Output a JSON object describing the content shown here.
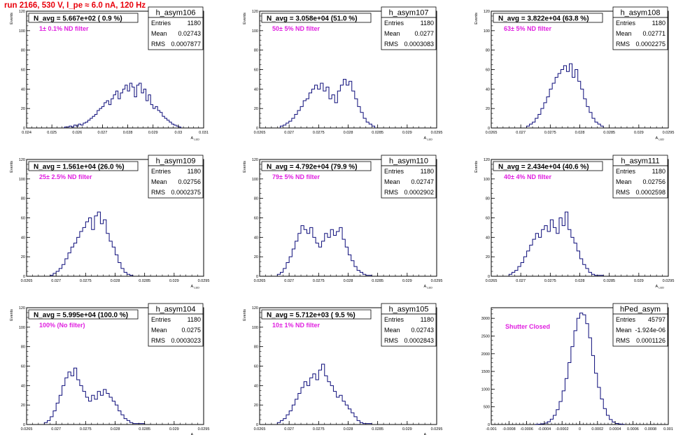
{
  "title": "run 2166,   530 V, I_pe ≈ 6.0 nA, 120 Hz",
  "colors": {
    "histogram": "#0c0c7a",
    "title": "#e8000b",
    "annotation": "#e020e0"
  },
  "chart_data": [
    {
      "type": "bar",
      "name": "h_asym106",
      "ylabel": "Events",
      "xlabel": "A_LED",
      "label": "N_avg = 5.667e+02 ( 0.9 %)",
      "note": "1± 0.1% ND filter",
      "stats": {
        "entries": "1180",
        "mean": "0.02743",
        "rms": "0.0007877"
      },
      "xlim": [
        0.024,
        0.031
      ],
      "ylim": [
        0,
        120
      ],
      "xticks": [
        0.024,
        0.025,
        0.026,
        0.027,
        0.028,
        0.029,
        0.03,
        0.031
      ],
      "xtick_labels": [
        "0.024",
        "0.025",
        "0.026",
        "0.027",
        "0.028",
        "0.029",
        "0.03",
        "0.031"
      ],
      "yticks": [
        0,
        20,
        40,
        60,
        80,
        100,
        120
      ],
      "ytick_labels": [
        "0",
        "20",
        "40",
        "60",
        "80",
        "100",
        "120"
      ],
      "bin_edges": [
        0.0255,
        0.0301
      ],
      "values": [
        1,
        1,
        2,
        1,
        3,
        2,
        4,
        3,
        5,
        6,
        8,
        10,
        12,
        14,
        18,
        20,
        22,
        26,
        28,
        24,
        30,
        34,
        38,
        30,
        36,
        40,
        44,
        38,
        46,
        42,
        32,
        44,
        46,
        36,
        40,
        28,
        34,
        24,
        20,
        22,
        18,
        16,
        12,
        10,
        8,
        6,
        4,
        3,
        2,
        1
      ]
    },
    {
      "type": "bar",
      "name": "h_asym107",
      "ylabel": "Events",
      "xlabel": "A_LED",
      "label": "N_avg = 3.058e+04 (51.0 %)",
      "note": "50± 5% ND filter",
      "stats": {
        "entries": "1180",
        "mean": "0.0277",
        "rms": "0.0003083"
      },
      "xlim": [
        0.0265,
        0.0295
      ],
      "ylim": [
        0,
        120
      ],
      "xticks": [
        0.0265,
        0.027,
        0.0275,
        0.028,
        0.0285,
        0.029,
        0.0295
      ],
      "xtick_labels": [
        "0.0265",
        "0.027",
        "0.0275",
        "0.028",
        "0.0285",
        "0.029",
        "0.0295"
      ],
      "yticks": [
        0,
        20,
        40,
        60,
        80,
        100,
        120
      ],
      "ytick_labels": [
        "0",
        "20",
        "40",
        "60",
        "80",
        "100",
        "120"
      ],
      "bin_edges": [
        0.02685,
        0.02845
      ],
      "values": [
        2,
        3,
        5,
        7,
        10,
        14,
        18,
        22,
        28,
        30,
        36,
        40,
        44,
        40,
        46,
        38,
        42,
        30,
        34,
        26,
        38,
        44,
        50,
        44,
        48,
        38,
        30,
        22,
        16,
        10,
        6,
        4,
        2
      ]
    },
    {
      "type": "bar",
      "name": "h_asym108",
      "ylabel": "Events",
      "xlabel": "A_LED",
      "label": "N_avg = 3.822e+04 (63.8 %)",
      "note": "63± 5% ND filter",
      "stats": {
        "entries": "1180",
        "mean": "0.02771",
        "rms": "0.0002275"
      },
      "xlim": [
        0.0265,
        0.0295
      ],
      "ylim": [
        0,
        120
      ],
      "xticks": [
        0.0265,
        0.027,
        0.0275,
        0.028,
        0.0285,
        0.029,
        0.0295
      ],
      "xtick_labels": [
        "0.0265",
        "0.027",
        "0.0275",
        "0.028",
        "0.0285",
        "0.029",
        "0.0295"
      ],
      "yticks": [
        0,
        20,
        40,
        60,
        80,
        100,
        120
      ],
      "ytick_labels": [
        "0",
        "20",
        "40",
        "60",
        "80",
        "100",
        "120"
      ],
      "bin_edges": [
        0.0271,
        0.0284
      ],
      "values": [
        2,
        4,
        6,
        10,
        14,
        20,
        26,
        32,
        40,
        46,
        52,
        56,
        60,
        64,
        58,
        66,
        52,
        60,
        48,
        40,
        30,
        22,
        16,
        10,
        6,
        4,
        2
      ]
    },
    {
      "type": "bar",
      "name": "h_asym109",
      "ylabel": "Events",
      "xlabel": "A_LED",
      "label": "N_avg = 1.561e+04 (26.0 %)",
      "note": "25± 2.5% ND filter",
      "stats": {
        "entries": "1180",
        "mean": "0.02756",
        "rms": "0.0002375"
      },
      "xlim": [
        0.0265,
        0.0295
      ],
      "ylim": [
        0,
        120
      ],
      "xticks": [
        0.0265,
        0.027,
        0.0275,
        0.028,
        0.0285,
        0.029,
        0.0295
      ],
      "xtick_labels": [
        "0.0265",
        "0.027",
        "0.0275",
        "0.028",
        "0.0285",
        "0.029",
        "0.0295"
      ],
      "yticks": [
        0,
        20,
        40,
        60,
        80,
        100,
        120
      ],
      "ytick_labels": [
        "0",
        "20",
        "40",
        "60",
        "80",
        "100",
        "120"
      ],
      "bin_edges": [
        0.0269,
        0.0283
      ],
      "values": [
        1,
        3,
        5,
        8,
        12,
        18,
        24,
        30,
        34,
        40,
        46,
        50,
        56,
        60,
        48,
        62,
        66,
        54,
        58,
        44,
        36,
        30,
        22,
        14,
        8,
        4,
        2,
        1
      ]
    },
    {
      "type": "bar",
      "name": "h_asym110",
      "ylabel": "Events",
      "xlabel": "A_LED",
      "label": "N_avg = 4.792e+04 (79.9 %)",
      "note": "79± 5% ND filter",
      "stats": {
        "entries": "1180",
        "mean": "0.02747",
        "rms": "0.0002902"
      },
      "xlim": [
        0.0265,
        0.0295
      ],
      "ylim": [
        0,
        120
      ],
      "xticks": [
        0.0265,
        0.027,
        0.0275,
        0.028,
        0.0285,
        0.029,
        0.0295
      ],
      "xtick_labels": [
        "0.0265",
        "0.027",
        "0.0275",
        "0.028",
        "0.0285",
        "0.029",
        "0.0295"
      ],
      "yticks": [
        0,
        20,
        40,
        60,
        80,
        100,
        120
      ],
      "ytick_labels": [
        "0",
        "20",
        "40",
        "60",
        "80",
        "100",
        "120"
      ],
      "bin_edges": [
        0.0268,
        0.0284
      ],
      "values": [
        2,
        4,
        8,
        14,
        20,
        28,
        36,
        44,
        52,
        48,
        44,
        50,
        40,
        34,
        30,
        36,
        44,
        40,
        48,
        42,
        46,
        50,
        38,
        30,
        22,
        16,
        10,
        6,
        4,
        2,
        1,
        1
      ]
    },
    {
      "type": "bar",
      "name": "h_asym111",
      "ylabel": "Events",
      "xlabel": "A_LED",
      "label": "N_avg = 2.434e+04 (40.6 %)",
      "note": "40± 4% ND filter",
      "stats": {
        "entries": "1180",
        "mean": "0.02756",
        "rms": "0.0002598"
      },
      "xlim": [
        0.0265,
        0.0295
      ],
      "ylim": [
        0,
        120
      ],
      "xticks": [
        0.0265,
        0.027,
        0.0275,
        0.028,
        0.0285,
        0.029,
        0.0295
      ],
      "xtick_labels": [
        "0.0265",
        "0.027",
        "0.0275",
        "0.028",
        "0.0285",
        "0.029",
        "0.0295"
      ],
      "yticks": [
        0,
        20,
        40,
        60,
        80,
        100,
        120
      ],
      "ytick_labels": [
        "0",
        "20",
        "40",
        "60",
        "80",
        "100",
        "120"
      ],
      "bin_edges": [
        0.0268,
        0.0284
      ],
      "values": [
        2,
        4,
        6,
        10,
        14,
        20,
        26,
        32,
        38,
        44,
        40,
        48,
        52,
        46,
        58,
        50,
        44,
        60,
        52,
        66,
        48,
        40,
        34,
        26,
        18,
        12,
        8,
        4,
        2,
        1,
        1,
        1
      ]
    },
    {
      "type": "bar",
      "name": "h_asym104",
      "ylabel": "Events",
      "xlabel": "A_LED",
      "label": "N_avg = 5.995e+04 (100.0 %)",
      "note": "100% (No filter)",
      "stats": {
        "entries": "1180",
        "mean": "0.0275",
        "rms": "0.0003023"
      },
      "xlim": [
        0.0265,
        0.0295
      ],
      "ylim": [
        0,
        120
      ],
      "xticks": [
        0.0265,
        0.027,
        0.0275,
        0.028,
        0.0285,
        0.029,
        0.0295
      ],
      "xtick_labels": [
        "0.0265",
        "0.027",
        "0.0275",
        "0.028",
        "0.0285",
        "0.029",
        "0.0295"
      ],
      "yticks": [
        0,
        20,
        40,
        60,
        80,
        100,
        120
      ],
      "ytick_labels": [
        "0",
        "20",
        "40",
        "60",
        "80",
        "100",
        "120"
      ],
      "bin_edges": [
        0.0268,
        0.0285
      ],
      "values": [
        2,
        4,
        8,
        14,
        22,
        30,
        40,
        48,
        54,
        50,
        58,
        46,
        40,
        34,
        28,
        24,
        30,
        26,
        34,
        30,
        36,
        32,
        28,
        24,
        20,
        14,
        10,
        6,
        4,
        2,
        1,
        1,
        1,
        1
      ]
    },
    {
      "type": "bar",
      "name": "h_asym105",
      "ylabel": "Events",
      "xlabel": "A_LED",
      "label": "N_avg = 5.712e+03 ( 9.5 %)",
      "note": "10± 1% ND filter",
      "stats": {
        "entries": "1180",
        "mean": "0.02743",
        "rms": "0.0002843"
      },
      "xlim": [
        0.0265,
        0.0295
      ],
      "ylim": [
        0,
        120
      ],
      "xticks": [
        0.0265,
        0.027,
        0.0275,
        0.028,
        0.0285,
        0.029,
        0.0295
      ],
      "xtick_labels": [
        "0.0265",
        "0.027",
        "0.0275",
        "0.028",
        "0.0285",
        "0.029",
        "0.0295"
      ],
      "yticks": [
        0,
        20,
        40,
        60,
        80,
        100,
        120
      ],
      "ytick_labels": [
        "0",
        "20",
        "40",
        "60",
        "80",
        "100",
        "120"
      ],
      "bin_edges": [
        0.0268,
        0.0284
      ],
      "values": [
        2,
        4,
        6,
        10,
        14,
        20,
        26,
        32,
        38,
        44,
        40,
        48,
        52,
        46,
        56,
        62,
        50,
        44,
        40,
        34,
        28,
        30,
        24,
        20,
        16,
        12,
        8,
        4,
        2,
        1,
        1,
        1
      ]
    },
    {
      "type": "bar",
      "name": "hPed_asym",
      "ylabel": "",
      "xlabel": "",
      "label": "",
      "note": "Shutter Closed",
      "stats": {
        "entries": "45797",
        "mean": "-1.924e-06",
        "rms": "0.0001126"
      },
      "xlim": [
        -0.001,
        0.001
      ],
      "ylim": [
        0,
        3300
      ],
      "xticks": [
        -0.001,
        -0.0008,
        -0.0006,
        -0.0004,
        -0.0002,
        0,
        0.0002,
        0.0004,
        0.0006,
        0.0008,
        0.001
      ],
      "xtick_labels": [
        "-0.001",
        "-0.0008",
        "-0.0006",
        "-0.0004",
        "-0.0002",
        "0",
        "0.0002",
        "0.0004",
        "0.0006",
        "0.0008",
        "0.001"
      ],
      "yticks": [
        0,
        500,
        1000,
        1500,
        2000,
        2500,
        3000
      ],
      "ytick_labels": [
        "0",
        "500",
        "1000",
        "1500",
        "2000",
        "2500",
        "3000"
      ],
      "bin_edges": [
        -0.0005,
        0.0005
      ],
      "values": [
        5,
        10,
        20,
        40,
        80,
        150,
        260,
        420,
        650,
        950,
        1300,
        1750,
        2200,
        2650,
        3000,
        3150,
        3100,
        2850,
        2450,
        1950,
        1450,
        1050,
        720,
        450,
        260,
        140,
        70,
        30,
        15,
        8
      ]
    }
  ],
  "stats_labels": {
    "entries": "Entries",
    "mean": "Mean",
    "rms": "RMS"
  }
}
